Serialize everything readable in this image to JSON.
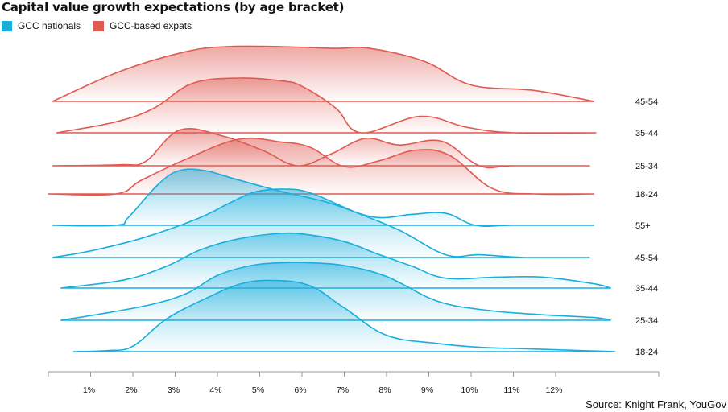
{
  "title": "Capital value growth expectations (by age bracket)",
  "legend": {
    "nationals_label": "GCC nationals",
    "expats_label": "GCC-based expats"
  },
  "source": "Source: Knight Frank, YouGov",
  "colors": {
    "nationals": "#1aaedd",
    "expats": "#e05a52",
    "axis": "#9a9a9a"
  },
  "chart_data": {
    "type": "area",
    "title": "Capital value growth expectations (by age bracket)",
    "xlabel": "",
    "ylabel": "",
    "x_ticks": [
      "1%",
      "2%",
      "3%",
      "4%",
      "5%",
      "6%",
      "7%",
      "8%",
      "9%",
      "10%",
      "11%",
      "12%"
    ],
    "x_tick_values": [
      1,
      2,
      3,
      4,
      5,
      6,
      7,
      8,
      9,
      10,
      11,
      12
    ],
    "xlim": [
      0,
      14.5
    ],
    "legend_position": "top-left",
    "grid": false,
    "series": [
      {
        "name": "GCC-based expats",
        "row_label": "45-54",
        "x": [
          0.1,
          1.7,
          3.2,
          4.2,
          5.5,
          6.8,
          7.6,
          8.9,
          10.0,
          11.5,
          12.9
        ],
        "density": [
          0.0,
          0.55,
          0.9,
          1.0,
          1.0,
          0.97,
          0.97,
          0.73,
          0.3,
          0.2,
          0.0
        ]
      },
      {
        "name": "GCC-based expats",
        "row_label": "35-44",
        "x": [
          0.2,
          1.6,
          2.5,
          3.4,
          4.5,
          5.5,
          6.0,
          6.8,
          7.4,
          8.8,
          9.9,
          11.0,
          12.95
        ],
        "density": [
          0.0,
          0.2,
          0.45,
          0.9,
          1.0,
          0.95,
          0.85,
          0.45,
          0.0,
          0.3,
          0.1,
          0.0,
          0.0
        ]
      },
      {
        "name": "GCC-based expats",
        "row_label": "25-34",
        "x": [
          0.1,
          1.7,
          2.3,
          3.1,
          4.1,
          5.1,
          5.9,
          6.7,
          7.5,
          8.3,
          9.3,
          10.2,
          11.0,
          12.8
        ],
        "density": [
          0.0,
          0.02,
          0.08,
          0.65,
          0.55,
          0.27,
          0.0,
          0.22,
          0.5,
          0.38,
          0.45,
          0.0,
          0.0,
          0.0
        ]
      },
      {
        "name": "GCC-based expats",
        "row_label": "18-24",
        "x": [
          0.0,
          1.6,
          2.2,
          3.3,
          4.5,
          5.5,
          6.2,
          7.0,
          7.8,
          8.7,
          9.5,
          10.5,
          11.5,
          12.9
        ],
        "density": [
          0.0,
          0.0,
          0.25,
          0.65,
          1.0,
          0.95,
          0.85,
          0.5,
          0.6,
          0.8,
          0.7,
          0.1,
          0.0,
          0.0
        ]
      },
      {
        "name": "GCC nationals",
        "row_label": "55+",
        "x": [
          0.1,
          1.6,
          1.9,
          2.6,
          3.1,
          3.7,
          4.4,
          5.5,
          6.6,
          7.7,
          8.6,
          9.4,
          10.1,
          11.0,
          12.9
        ],
        "density": [
          0.0,
          0.0,
          0.15,
          0.75,
          1.0,
          1.0,
          0.85,
          0.62,
          0.42,
          0.15,
          0.2,
          0.22,
          0.0,
          0.0,
          0.0
        ]
      },
      {
        "name": "GCC nationals",
        "row_label": "45-54",
        "x": [
          0.1,
          1.0,
          2.2,
          3.5,
          4.3,
          4.9,
          5.6,
          6.2,
          7.2,
          8.3,
          9.4,
          10.2,
          11.3,
          12.8
        ],
        "density": [
          0.0,
          0.12,
          0.35,
          0.7,
          1.0,
          1.2,
          1.25,
          1.18,
          0.85,
          0.5,
          0.05,
          0.05,
          0.0,
          0.0
        ]
      },
      {
        "name": "GCC nationals",
        "row_label": "35-44",
        "x": [
          0.3,
          1.8,
          2.8,
          3.6,
          4.5,
          5.5,
          6.2,
          7.0,
          7.8,
          8.6,
          9.4,
          10.6,
          11.7,
          12.9,
          13.3
        ],
        "density": [
          0.0,
          0.15,
          0.4,
          0.7,
          0.9,
          1.0,
          0.97,
          0.85,
          0.62,
          0.4,
          0.18,
          0.2,
          0.2,
          0.08,
          0.0
        ]
      },
      {
        "name": "GCC nationals",
        "row_label": "25-34",
        "x": [
          0.3,
          1.5,
          2.5,
          3.3,
          4.0,
          4.8,
          5.5,
          6.2,
          7.0,
          8.0,
          9.2,
          10.4,
          11.7,
          12.9,
          13.3
        ],
        "density": [
          0.0,
          0.15,
          0.3,
          0.5,
          0.82,
          1.0,
          1.05,
          1.05,
          1.0,
          0.8,
          0.35,
          0.18,
          0.1,
          0.05,
          0.0
        ]
      },
      {
        "name": "GCC nationals",
        "row_label": "18-24",
        "x": [
          0.6,
          1.4,
          2.0,
          2.8,
          3.8,
          4.6,
          5.4,
          6.2,
          7.0,
          8.0,
          9.2,
          10.2,
          11.4,
          12.6,
          13.4
        ],
        "density": [
          0.0,
          0.02,
          0.1,
          0.6,
          1.0,
          1.25,
          1.3,
          1.2,
          0.8,
          0.3,
          0.15,
          0.08,
          0.05,
          0.02,
          0.0
        ]
      }
    ]
  }
}
